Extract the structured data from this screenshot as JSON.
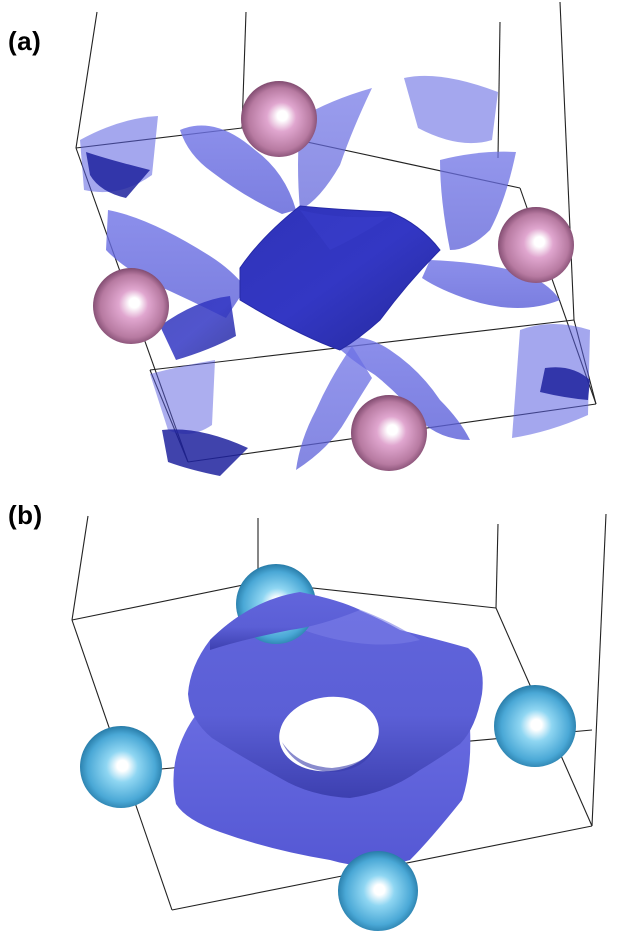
{
  "panels": [
    {
      "label": "(a)",
      "atom_color": "#c989b2",
      "isosurface_color": "#3f44cc",
      "atom_count": 4
    },
    {
      "label": "(b)",
      "atom_color": "#4fb3df",
      "isosurface_color": "#6c6ee0",
      "atom_count": 4
    }
  ]
}
